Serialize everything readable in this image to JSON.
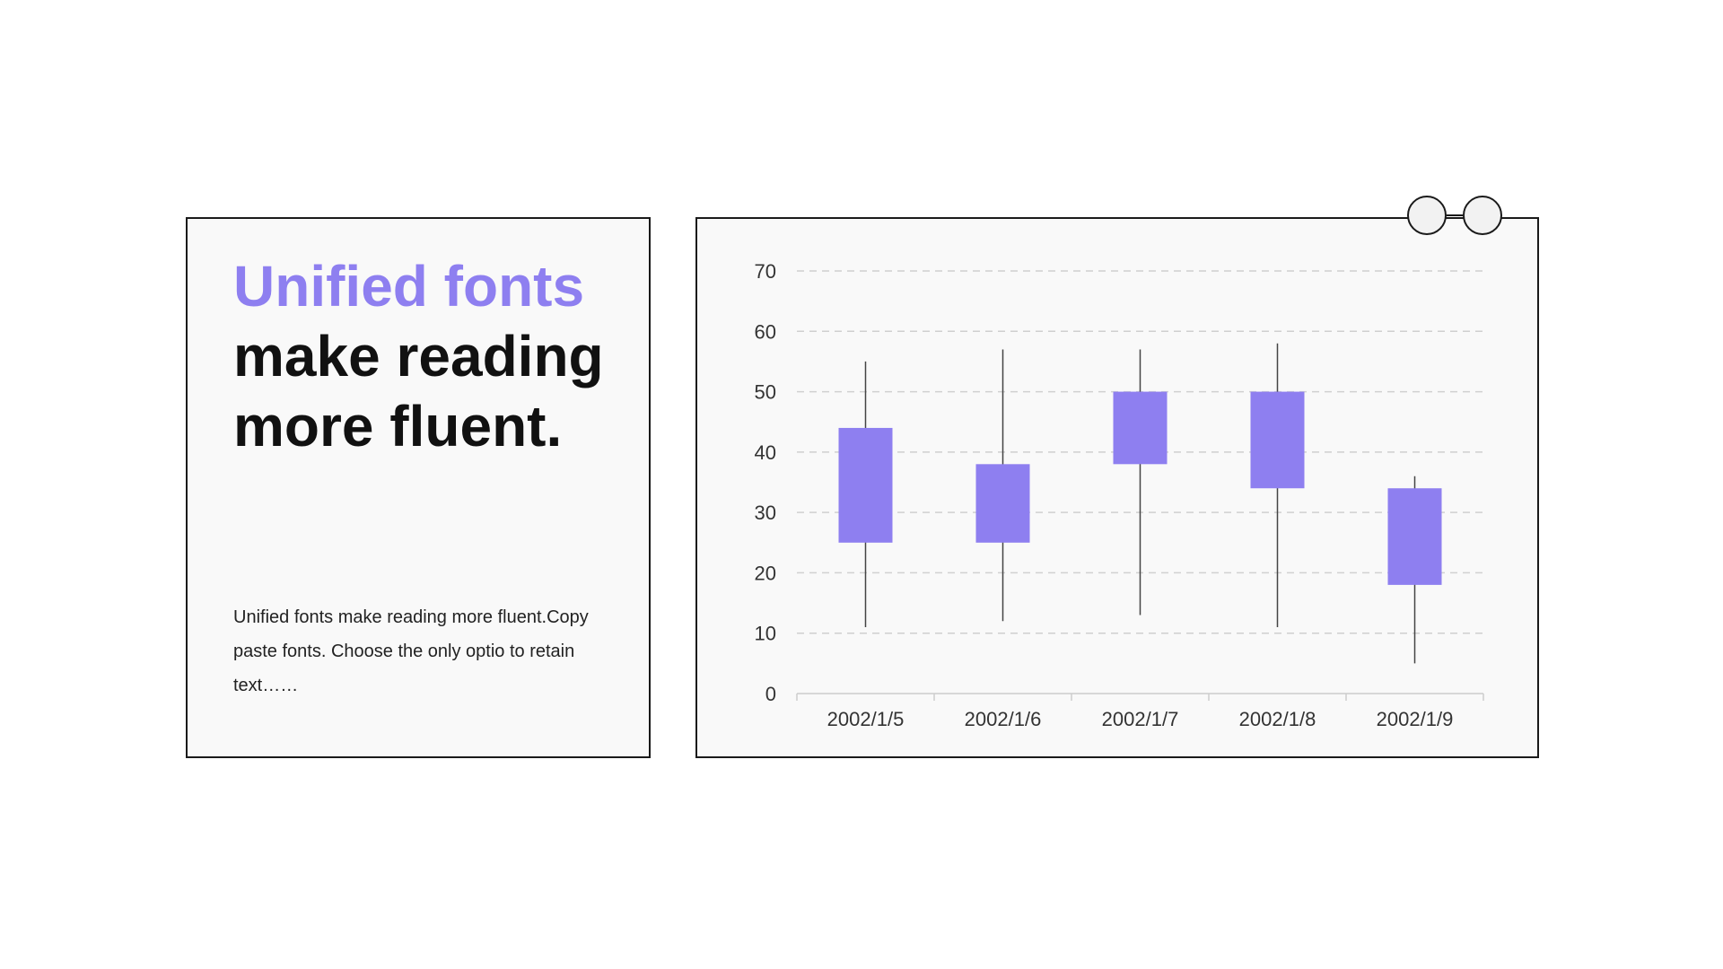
{
  "text_card": {
    "headline_accent": "Unified fonts",
    "headline_rest": " make reading more fluent.",
    "body": "Unified fonts make reading more fluent.Copy paste fonts. Choose the only optio to retain text……"
  },
  "colors": {
    "accent": "#8e7ff0",
    "text": "#111111",
    "card_background": "#f9f9f9",
    "border": "#1a1a1a",
    "grid": "#d0d0d0"
  },
  "chart_data": {
    "type": "candlestick",
    "categories": [
      "2002/1/5",
      "2002/1/6",
      "2002/1/7",
      "2002/1/8",
      "2002/1/9"
    ],
    "series": [
      {
        "open": [
          25,
          25,
          38,
          34,
          18
        ],
        "close": [
          44,
          38,
          50,
          50,
          34
        ],
        "low": [
          11,
          12,
          13,
          11,
          5
        ],
        "high": [
          55,
          57,
          57,
          58,
          36
        ]
      }
    ],
    "y_ticks": [
      0,
      10,
      20,
      30,
      40,
      50,
      60,
      70
    ],
    "ylim": [
      0,
      70
    ],
    "grid": true,
    "grid_style": "dashed",
    "color": "#8e7ff0"
  }
}
